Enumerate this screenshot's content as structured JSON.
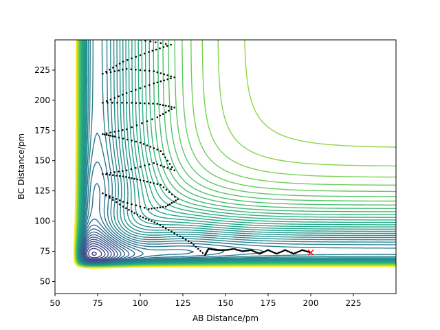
{
  "chart_data": {
    "type": "contour",
    "xlabel": "AB Distance/pm",
    "ylabel": "BC Distance/pm",
    "xlim": [
      50,
      250
    ],
    "ylim": [
      40,
      250
    ],
    "xticks": [
      50,
      75,
      100,
      125,
      150,
      175,
      200,
      225
    ],
    "yticks": [
      50,
      75,
      100,
      125,
      150,
      175,
      200,
      225
    ],
    "grid": false,
    "colormap": "viridis",
    "contour_levels": 60,
    "surface": {
      "type": "LEPS-like potential, symmetric in AB and BC",
      "equilibrium_distance": 74,
      "repulsive_wall_distance": 62
    },
    "trajectory": {
      "color": "#000000",
      "start": [
        200,
        74
      ],
      "start_marker": "x",
      "start_marker_color": "#ff0000",
      "path": [
        [
          200,
          74
        ],
        [
          195,
          76
        ],
        [
          190,
          73
        ],
        [
          185,
          76
        ],
        [
          180,
          73
        ],
        [
          175,
          76
        ],
        [
          170,
          73
        ],
        [
          165,
          76
        ],
        [
          160,
          75
        ],
        [
          155,
          77
        ],
        [
          150,
          76
        ],
        [
          145,
          76
        ],
        [
          140,
          77
        ],
        [
          138,
          72
        ],
        [
          130,
          82
        ],
        [
          120,
          90
        ],
        [
          110,
          98
        ],
        [
          100,
          104
        ],
        [
          90,
          112
        ],
        [
          78,
          123
        ],
        [
          90,
          116
        ],
        [
          105,
          110
        ],
        [
          115,
          112
        ],
        [
          122,
          118
        ],
        [
          112,
          130
        ],
        [
          100,
          134
        ],
        [
          90,
          137
        ],
        [
          78,
          139
        ],
        [
          92,
          142
        ],
        [
          108,
          148
        ],
        [
          120,
          142
        ],
        [
          112,
          158
        ],
        [
          100,
          165
        ],
        [
          85,
          170
        ],
        [
          78,
          172
        ],
        [
          92,
          176
        ],
        [
          110,
          186
        ],
        [
          120,
          194
        ],
        [
          110,
          197
        ],
        [
          95,
          198
        ],
        [
          78,
          198
        ],
        [
          92,
          206
        ],
        [
          108,
          214
        ],
        [
          120,
          219
        ],
        [
          108,
          224
        ],
        [
          92,
          226
        ],
        [
          78,
          222
        ],
        [
          90,
          232
        ],
        [
          105,
          240
        ],
        [
          118,
          246
        ],
        [
          100,
          250
        ]
      ]
    },
    "colors": {
      "low": "#440154",
      "mid": "#21918c",
      "high": "#fde725",
      "marker": "#ff0000"
    }
  }
}
